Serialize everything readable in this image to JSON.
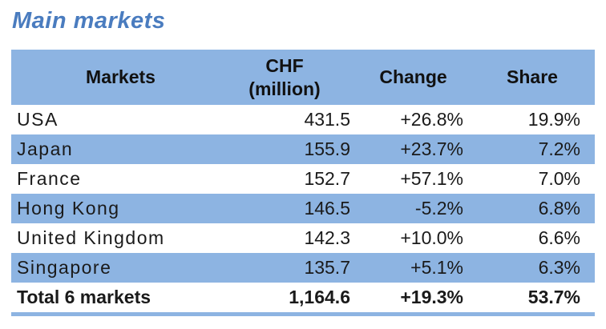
{
  "title": "Main markets",
  "colors": {
    "title_blue": "#4A7CBF",
    "band_blue": "#8DB4E2",
    "text": "#1a1a1a",
    "background": "#ffffff"
  },
  "table": {
    "headers": {
      "markets": "Markets",
      "chf_line1": "CHF",
      "chf_line2": "(million)",
      "change": "Change",
      "share": "Share"
    },
    "rows": [
      {
        "market": "USA",
        "chf": "431.5",
        "change": "+26.8%",
        "share": "19.9%"
      },
      {
        "market": "Japan",
        "chf": "155.9",
        "change": "+23.7%",
        "share": "7.2%"
      },
      {
        "market": "France",
        "chf": "152.7",
        "change": "+57.1%",
        "share": "7.0%"
      },
      {
        "market": "Hong Kong",
        "chf": "146.5",
        "change": "-5.2%",
        "share": "6.8%"
      },
      {
        "market": "United Kingdom",
        "chf": "142.3",
        "change": "+10.0%",
        "share": "6.6%"
      },
      {
        "market": "Singapore",
        "chf": "135.7",
        "change": "+5.1%",
        "share": "6.3%"
      }
    ],
    "total": {
      "market": "Total 6 markets",
      "chf": "1,164.6",
      "change": "+19.3%",
      "share": "53.7%"
    }
  },
  "chart_data": {
    "type": "table",
    "title": "Main markets",
    "columns": [
      "Markets",
      "CHF (million)",
      "Change",
      "Share"
    ],
    "categories": [
      "USA",
      "Japan",
      "France",
      "Hong Kong",
      "United Kingdom",
      "Singapore"
    ],
    "series": [
      {
        "name": "CHF (million)",
        "values": [
          431.5,
          155.9,
          152.7,
          146.5,
          142.3,
          135.7
        ]
      },
      {
        "name": "Change %",
        "values": [
          26.8,
          23.7,
          57.1,
          -5.2,
          10.0,
          5.1
        ]
      },
      {
        "name": "Share %",
        "values": [
          19.9,
          7.2,
          7.0,
          6.8,
          6.6,
          6.3
        ]
      }
    ],
    "total_row": {
      "label": "Total 6 markets",
      "chf_million": 1164.6,
      "change_pct": 19.3,
      "share_pct": 53.7
    }
  }
}
